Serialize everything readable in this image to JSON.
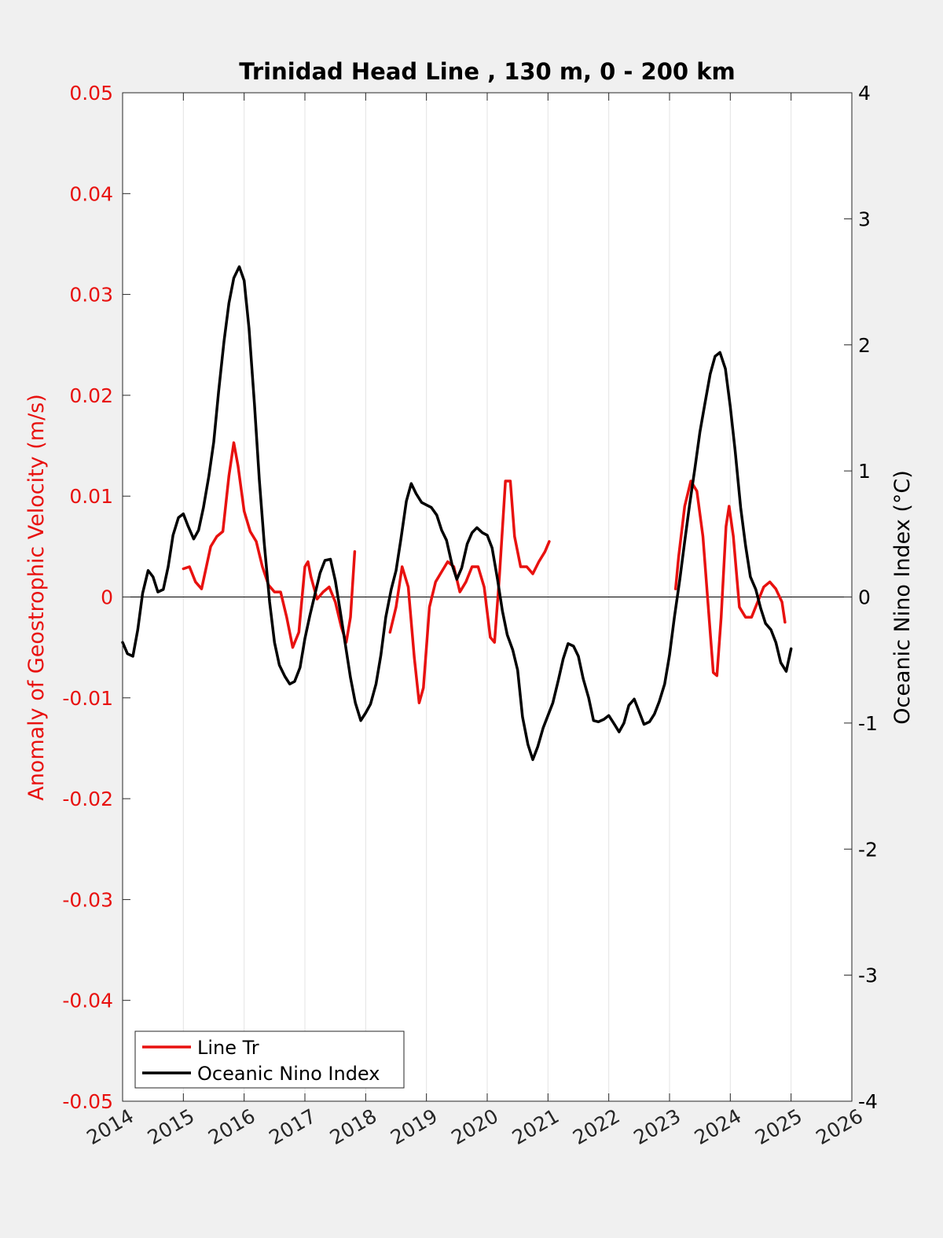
{
  "chart_data": {
    "type": "line",
    "title": "Trinidad Head Line , 130 m, 0 - 200 km",
    "ylabel_left": "Anomaly of Geostrophic Velocity (m/s)",
    "ylabel_right": "Oceanic Nino Index (°C)",
    "xlabel": "",
    "xlim": [
      2014,
      2026
    ],
    "ylim_left": [
      -0.05,
      0.05
    ],
    "ylim_right": [
      -4,
      4
    ],
    "x_ticks": [
      "2014",
      "2015",
      "2016",
      "2017",
      "2018",
      "2019",
      "2020",
      "2021",
      "2022",
      "2023",
      "2024",
      "2025",
      "2026"
    ],
    "y_ticks_left": [
      "0.05",
      "0.04",
      "0.03",
      "0.02",
      "0.01",
      "0",
      "-0.01",
      "-0.02",
      "-0.03",
      "-0.04",
      "-0.05"
    ],
    "y_ticks_right": [
      "4",
      "3",
      "2",
      "1",
      "0",
      "-1",
      "-2",
      "-3",
      "-4"
    ],
    "grid": "vertical",
    "legend_position": "bottom-left",
    "colors": {
      "line_tr": "#e8110f",
      "oni": "#000000",
      "left_axis": "#e8110f"
    },
    "series": [
      {
        "name": "Line Tr",
        "axis": "left",
        "segments": [
          [
            [
              2015.0,
              0.0028
            ],
            [
              2015.1,
              0.003
            ],
            [
              2015.2,
              0.0015
            ],
            [
              2015.3,
              0.0008
            ],
            [
              2015.45,
              0.005
            ],
            [
              2015.55,
              0.006
            ],
            [
              2015.65,
              0.0065
            ],
            [
              2015.75,
              0.012
            ],
            [
              2015.83,
              0.0153
            ],
            [
              2015.9,
              0.013
            ],
            [
              2016.0,
              0.0085
            ],
            [
              2016.1,
              0.0065
            ],
            [
              2016.2,
              0.0055
            ],
            [
              2016.3,
              0.003
            ],
            [
              2016.4,
              0.0012
            ],
            [
              2016.5,
              0.0005
            ],
            [
              2016.6,
              0.0005
            ],
            [
              2016.7,
              -0.002
            ],
            [
              2016.8,
              -0.005
            ],
            [
              2016.9,
              -0.0035
            ],
            [
              2017.0,
              0.003
            ],
            [
              2017.05,
              0.0035
            ],
            [
              2017.1,
              0.002
            ],
            [
              2017.2,
              -0.0002
            ],
            [
              2017.3,
              0.0005
            ],
            [
              2017.4,
              0.001
            ],
            [
              2017.5,
              -0.0005
            ],
            [
              2017.6,
              -0.003
            ],
            [
              2017.68,
              -0.0045
            ],
            [
              2017.75,
              -0.002
            ],
            [
              2017.82,
              0.0045
            ]
          ],
          [
            [
              2018.4,
              -0.0035
            ],
            [
              2018.5,
              -0.001
            ],
            [
              2018.6,
              0.003
            ],
            [
              2018.7,
              0.001
            ],
            [
              2018.8,
              -0.006
            ],
            [
              2018.88,
              -0.0105
            ],
            [
              2018.95,
              -0.009
            ],
            [
              2019.05,
              -0.001
            ],
            [
              2019.15,
              0.0015
            ],
            [
              2019.25,
              0.0025
            ],
            [
              2019.35,
              0.0035
            ],
            [
              2019.45,
              0.003
            ],
            [
              2019.55,
              0.0005
            ],
            [
              2019.65,
              0.0015
            ],
            [
              2019.75,
              0.003
            ],
            [
              2019.85,
              0.003
            ],
            [
              2019.95,
              0.001
            ],
            [
              2020.05,
              -0.004
            ],
            [
              2020.12,
              -0.0045
            ],
            [
              2020.2,
              0.002
            ],
            [
              2020.3,
              0.0115
            ],
            [
              2020.38,
              0.0115
            ],
            [
              2020.45,
              0.006
            ],
            [
              2020.55,
              0.003
            ],
            [
              2020.65,
              0.003
            ],
            [
              2020.75,
              0.0023
            ],
            [
              2020.85,
              0.0035
            ],
            [
              2020.95,
              0.0045
            ],
            [
              2021.02,
              0.0055
            ]
          ],
          [
            [
              2023.1,
              0.0008
            ],
            [
              2023.15,
              0.004
            ],
            [
              2023.25,
              0.009
            ],
            [
              2023.35,
              0.0115
            ],
            [
              2023.45,
              0.0105
            ],
            [
              2023.55,
              0.006
            ],
            [
              2023.65,
              -0.002
            ],
            [
              2023.72,
              -0.0075
            ],
            [
              2023.78,
              -0.0078
            ],
            [
              2023.85,
              -0.002
            ],
            [
              2023.93,
              0.007
            ],
            [
              2023.98,
              0.009
            ],
            [
              2024.05,
              0.006
            ],
            [
              2024.15,
              -0.001
            ],
            [
              2024.25,
              -0.002
            ],
            [
              2024.35,
              -0.002
            ],
            [
              2024.45,
              -0.0005
            ],
            [
              2024.55,
              0.001
            ],
            [
              2024.65,
              0.0015
            ],
            [
              2024.75,
              0.0008
            ],
            [
              2024.85,
              -0.0005
            ],
            [
              2024.9,
              -0.0025
            ]
          ]
        ]
      },
      {
        "name": "Oceanic Nino Index",
        "axis": "right",
        "segments": [
          [
            [
              2014.0,
              -0.36
            ],
            [
              2014.08,
              -0.45
            ],
            [
              2014.17,
              -0.47
            ],
            [
              2014.25,
              -0.26
            ],
            [
              2014.33,
              0.03
            ],
            [
              2014.42,
              0.21
            ],
            [
              2014.5,
              0.16
            ],
            [
              2014.58,
              0.04
            ],
            [
              2014.67,
              0.06
            ],
            [
              2014.75,
              0.24
            ],
            [
              2014.83,
              0.49
            ],
            [
              2014.92,
              0.63
            ],
            [
              2015.0,
              0.66
            ],
            [
              2015.08,
              0.56
            ],
            [
              2015.17,
              0.46
            ],
            [
              2015.25,
              0.53
            ],
            [
              2015.33,
              0.71
            ],
            [
              2015.42,
              0.96
            ],
            [
              2015.5,
              1.23
            ],
            [
              2015.58,
              1.63
            ],
            [
              2015.67,
              2.03
            ],
            [
              2015.75,
              2.33
            ],
            [
              2015.83,
              2.53
            ],
            [
              2015.92,
              2.62
            ],
            [
              2016.0,
              2.51
            ],
            [
              2016.08,
              2.13
            ],
            [
              2016.17,
              1.53
            ],
            [
              2016.25,
              0.93
            ],
            [
              2016.33,
              0.43
            ],
            [
              2016.42,
              -0.04
            ],
            [
              2016.5,
              -0.36
            ],
            [
              2016.58,
              -0.54
            ],
            [
              2016.67,
              -0.63
            ],
            [
              2016.75,
              -0.69
            ],
            [
              2016.83,
              -0.67
            ],
            [
              2016.92,
              -0.56
            ],
            [
              2017.0,
              -0.33
            ],
            [
              2017.08,
              -0.15
            ],
            [
              2017.17,
              0.03
            ],
            [
              2017.25,
              0.19
            ],
            [
              2017.33,
              0.29
            ],
            [
              2017.42,
              0.3
            ],
            [
              2017.5,
              0.13
            ],
            [
              2017.58,
              -0.11
            ],
            [
              2017.67,
              -0.39
            ],
            [
              2017.75,
              -0.64
            ],
            [
              2017.83,
              -0.84
            ],
            [
              2017.92,
              -0.98
            ],
            [
              2018.0,
              -0.92
            ],
            [
              2018.08,
              -0.85
            ],
            [
              2018.17,
              -0.69
            ],
            [
              2018.25,
              -0.46
            ],
            [
              2018.33,
              -0.16
            ],
            [
              2018.42,
              0.06
            ],
            [
              2018.5,
              0.21
            ],
            [
              2018.58,
              0.46
            ],
            [
              2018.67,
              0.76
            ],
            [
              2018.75,
              0.9
            ],
            [
              2018.83,
              0.82
            ],
            [
              2018.92,
              0.75
            ],
            [
              2019.0,
              0.73
            ],
            [
              2019.08,
              0.71
            ],
            [
              2019.17,
              0.65
            ],
            [
              2019.25,
              0.53
            ],
            [
              2019.33,
              0.45
            ],
            [
              2019.42,
              0.26
            ],
            [
              2019.5,
              0.14
            ],
            [
              2019.58,
              0.23
            ],
            [
              2019.67,
              0.42
            ],
            [
              2019.75,
              0.51
            ],
            [
              2019.83,
              0.55
            ],
            [
              2019.92,
              0.51
            ],
            [
              2020.0,
              0.49
            ],
            [
              2020.08,
              0.39
            ],
            [
              2020.17,
              0.14
            ],
            [
              2020.25,
              -0.11
            ],
            [
              2020.33,
              -0.3
            ],
            [
              2020.42,
              -0.42
            ],
            [
              2020.5,
              -0.58
            ],
            [
              2020.58,
              -0.95
            ],
            [
              2020.67,
              -1.17
            ],
            [
              2020.75,
              -1.29
            ],
            [
              2020.83,
              -1.19
            ],
            [
              2020.92,
              -1.04
            ],
            [
              2021.0,
              -0.94
            ],
            [
              2021.08,
              -0.84
            ],
            [
              2021.17,
              -0.66
            ],
            [
              2021.25,
              -0.49
            ],
            [
              2021.33,
              -0.37
            ],
            [
              2021.42,
              -0.39
            ],
            [
              2021.5,
              -0.47
            ],
            [
              2021.58,
              -0.65
            ],
            [
              2021.67,
              -0.8
            ],
            [
              2021.75,
              -0.98
            ],
            [
              2021.83,
              -0.99
            ],
            [
              2021.92,
              -0.97
            ],
            [
              2022.0,
              -0.94
            ],
            [
              2022.08,
              -1.0
            ],
            [
              2022.17,
              -1.07
            ],
            [
              2022.25,
              -1.0
            ],
            [
              2022.33,
              -0.86
            ],
            [
              2022.42,
              -0.81
            ],
            [
              2022.5,
              -0.91
            ],
            [
              2022.58,
              -1.01
            ],
            [
              2022.67,
              -0.99
            ],
            [
              2022.75,
              -0.93
            ],
            [
              2022.83,
              -0.83
            ],
            [
              2022.92,
              -0.69
            ],
            [
              2023.0,
              -0.46
            ],
            [
              2023.08,
              -0.16
            ],
            [
              2023.17,
              0.14
            ],
            [
              2023.25,
              0.44
            ],
            [
              2023.33,
              0.73
            ],
            [
              2023.42,
              1.03
            ],
            [
              2023.5,
              1.31
            ],
            [
              2023.58,
              1.53
            ],
            [
              2023.67,
              1.77
            ],
            [
              2023.75,
              1.91
            ],
            [
              2023.83,
              1.94
            ],
            [
              2023.92,
              1.81
            ],
            [
              2024.0,
              1.51
            ],
            [
              2024.08,
              1.16
            ],
            [
              2024.17,
              0.71
            ],
            [
              2024.25,
              0.41
            ],
            [
              2024.33,
              0.16
            ],
            [
              2024.42,
              0.06
            ],
            [
              2024.5,
              -0.09
            ],
            [
              2024.58,
              -0.21
            ],
            [
              2024.67,
              -0.26
            ],
            [
              2024.75,
              -0.36
            ],
            [
              2024.83,
              -0.52
            ],
            [
              2024.92,
              -0.59
            ],
            [
              2025.0,
              -0.41
            ]
          ]
        ]
      }
    ]
  }
}
